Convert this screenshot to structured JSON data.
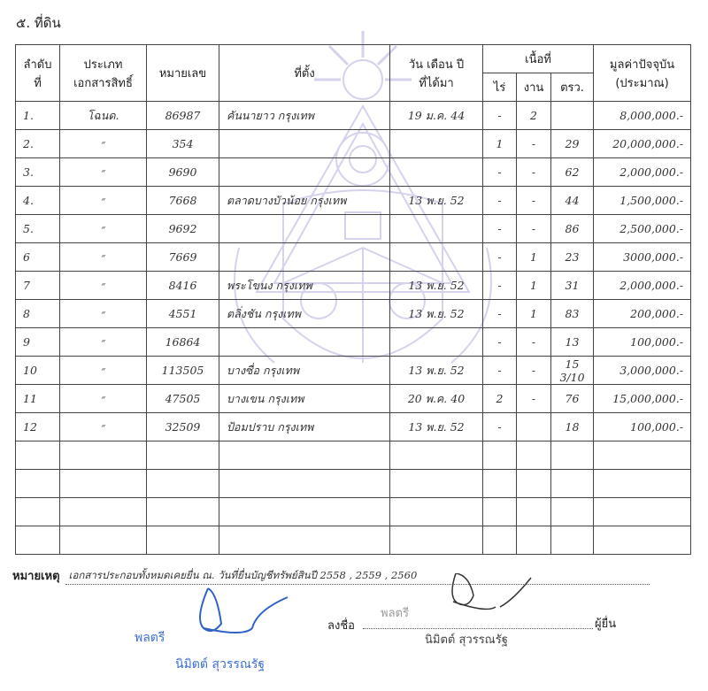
{
  "section_title": "๕. ที่ดิน",
  "table": {
    "headers": {
      "no": [
        "ลำดับ",
        "ที่"
      ],
      "doc_type": [
        "ประเภท",
        "เอกสารสิทธิ์"
      ],
      "number": "หมายเลข",
      "location": "ที่ตั้ง",
      "date": [
        "วัน เดือน ปี",
        "ที่ได้มา"
      ],
      "area": "เนื้อที่",
      "area_units": [
        "ไร่",
        "งาน",
        "ตรว."
      ],
      "value": [
        "มูลค่าปัจจุบัน",
        "(ประมาณ)"
      ]
    },
    "rows": [
      {
        "no": "1.",
        "type": "โฉนด.",
        "number": "86987",
        "location": "คันนายาว กรุงเทพ",
        "date": "19 ม.ค. 44",
        "rai": "-",
        "ngan": "2",
        "wa": "",
        "value": "8,000,000.-"
      },
      {
        "no": "2.",
        "type": "״",
        "number": "354",
        "location": "",
        "date": "",
        "rai": "1",
        "ngan": "-",
        "wa": "29",
        "value": "20,000,000.-"
      },
      {
        "no": "3.",
        "type": "״",
        "number": "9690",
        "location": "",
        "date": "",
        "rai": "-",
        "ngan": "-",
        "wa": "62",
        "value": "2,000,000.-"
      },
      {
        "no": "4.",
        "type": "״",
        "number": "7668",
        "location": "ตลาดบางบัวน้อย กรุงเทพ",
        "date": "13 พ.ย. 52",
        "rai": "-",
        "ngan": "-",
        "wa": "44",
        "value": "1,500,000.-"
      },
      {
        "no": "5.",
        "type": "״",
        "number": "9692",
        "location": "",
        "date": "",
        "rai": "-",
        "ngan": "-",
        "wa": "86",
        "value": "2,500,000.-"
      },
      {
        "no": "6",
        "type": "״",
        "number": "7669",
        "location": "",
        "date": "",
        "rai": "-",
        "ngan": "1",
        "wa": "23",
        "value": "3000,000.-"
      },
      {
        "no": "7",
        "type": "״",
        "number": "8416",
        "location": "พระโขนง กรุงเทพ",
        "date": "13 พ.ย. 52",
        "rai": "-",
        "ngan": "1",
        "wa": "31",
        "value": "2,000,000.-"
      },
      {
        "no": "8",
        "type": "״",
        "number": "4551",
        "location": "ตลิ่งชัน กรุงเทพ",
        "date": "13 พ.ย. 52",
        "rai": "-",
        "ngan": "1",
        "wa": "83",
        "value": "200,000.-"
      },
      {
        "no": "9",
        "type": "״",
        "number": "16864",
        "location": "",
        "date": "",
        "rai": "-",
        "ngan": "-",
        "wa": "13",
        "value": "100,000.-"
      },
      {
        "no": "10",
        "type": "״",
        "number": "113505",
        "location": "บางซื่อ กรุงเทพ",
        "date": "13 พ.ย. 52",
        "rai": "-",
        "ngan": "-",
        "wa": "15 3/10",
        "value": "3,000,000.-"
      },
      {
        "no": "11",
        "type": "״",
        "number": "47505",
        "location": "บางเขน กรุงเทพ",
        "date": "20 พ.ค. 40",
        "rai": "2",
        "ngan": "-",
        "wa": "76",
        "value": "15,000,000.-"
      },
      {
        "no": "12",
        "type": "״",
        "number": "32509",
        "location": "ป้อมปราบ กรุงเทพ",
        "date": "13 พ.ย. 52",
        "rai": "-",
        "ngan": "",
        "wa": "18",
        "value": "100,000.-"
      }
    ]
  },
  "remark": {
    "label": "หมายเหตุ",
    "value": "เอกสารประกอบทั้งหมดเคยยื่น ณ. วันที่ยื่นบัญชีทรัพย์สินปี 2558 , 2559 , 2560"
  },
  "signature_left": {
    "rank": "พลตรี",
    "name": "นิมิตต์  สุวรรณรัฐ",
    "color": "#3d6fd1"
  },
  "signature_right": {
    "sign_label": "ลงชื่อ",
    "rank": "พลตรี",
    "name": "นิมิตต์  สุวรรณรัฐ",
    "role": "ผู้ยื่น"
  }
}
